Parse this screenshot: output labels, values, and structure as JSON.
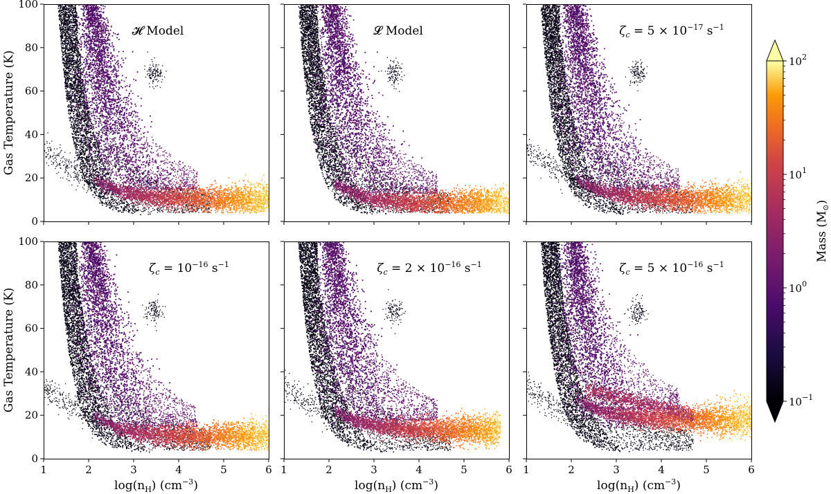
{
  "chart_data": {
    "type": "scatter",
    "description_kind": "2D phase-space density (mass-weighted) scatter, 2x3 panels",
    "xlabel": "log(n",
    "xlabel_sub": "H",
    "xlabel_tail": ") (cm",
    "xlabel_sup": "−3",
    "xlabel_end": ")",
    "ylabel": "Gas Temperature (K)",
    "xlim": [
      1,
      6
    ],
    "ylim": [
      0,
      100
    ],
    "x_ticks": [
      1,
      2,
      3,
      4,
      5,
      6
    ],
    "y_ticks": [
      0,
      20,
      40,
      60,
      80,
      100
    ],
    "x_tick_labels": [
      "1",
      "2",
      "3",
      "4",
      "5",
      "6"
    ],
    "y_tick_labels": [
      "0",
      "20",
      "40",
      "60",
      "80",
      "100"
    ],
    "colorbar": {
      "label": "Mass (M",
      "label_sub": "⊙",
      "label_end": ")",
      "scale": "log",
      "range": [
        0.1,
        100
      ],
      "ticks": [
        {
          "value": 0.1,
          "base": "10",
          "exp": "−1"
        },
        {
          "value": 1,
          "base": "10",
          "exp": "0"
        },
        {
          "value": 10,
          "base": "10",
          "exp": "1"
        },
        {
          "value": 100,
          "base": "10",
          "exp": "2"
        }
      ],
      "extend": "both"
    },
    "panels": [
      {
        "title": "𝓗 Model",
        "plateau_T": 11,
        "plateau_x_end": 6.0,
        "tail": true,
        "warm_band": false
      },
      {
        "title": "𝓛 Model",
        "plateau_T": 9,
        "plateau_x_end": 6.0,
        "tail": false,
        "warm_band": false
      },
      {
        "title": "ζ_c = 5 × 10^−17 s^−1",
        "title_parts": {
          "pre": "5 × 10",
          "exp": "−17"
        },
        "plateau_T": 11,
        "plateau_x_end": 6.0,
        "tail": true,
        "warm_band": false
      },
      {
        "title": "ζ_c = 10^−16 s^−1",
        "title_parts": {
          "pre": "10",
          "exp": "−16"
        },
        "plateau_T": 11,
        "plateau_x_end": 6.0,
        "tail": true,
        "warm_band": false
      },
      {
        "title": "ζ_c = 2 × 10^−16 s^−1",
        "title_parts": {
          "pre": "2 × 10",
          "exp": "−16"
        },
        "plateau_T": 14,
        "plateau_x_end": 5.8,
        "tail": true,
        "warm_band": false
      },
      {
        "title": "ζ_c = 5 × 10^−16 s^−1",
        "title_parts": {
          "pre": "5 × 10",
          "exp": "−16"
        },
        "plateau_T": 19,
        "plateau_x_end": 6.0,
        "tail": true,
        "warm_band": true
      }
    ]
  }
}
